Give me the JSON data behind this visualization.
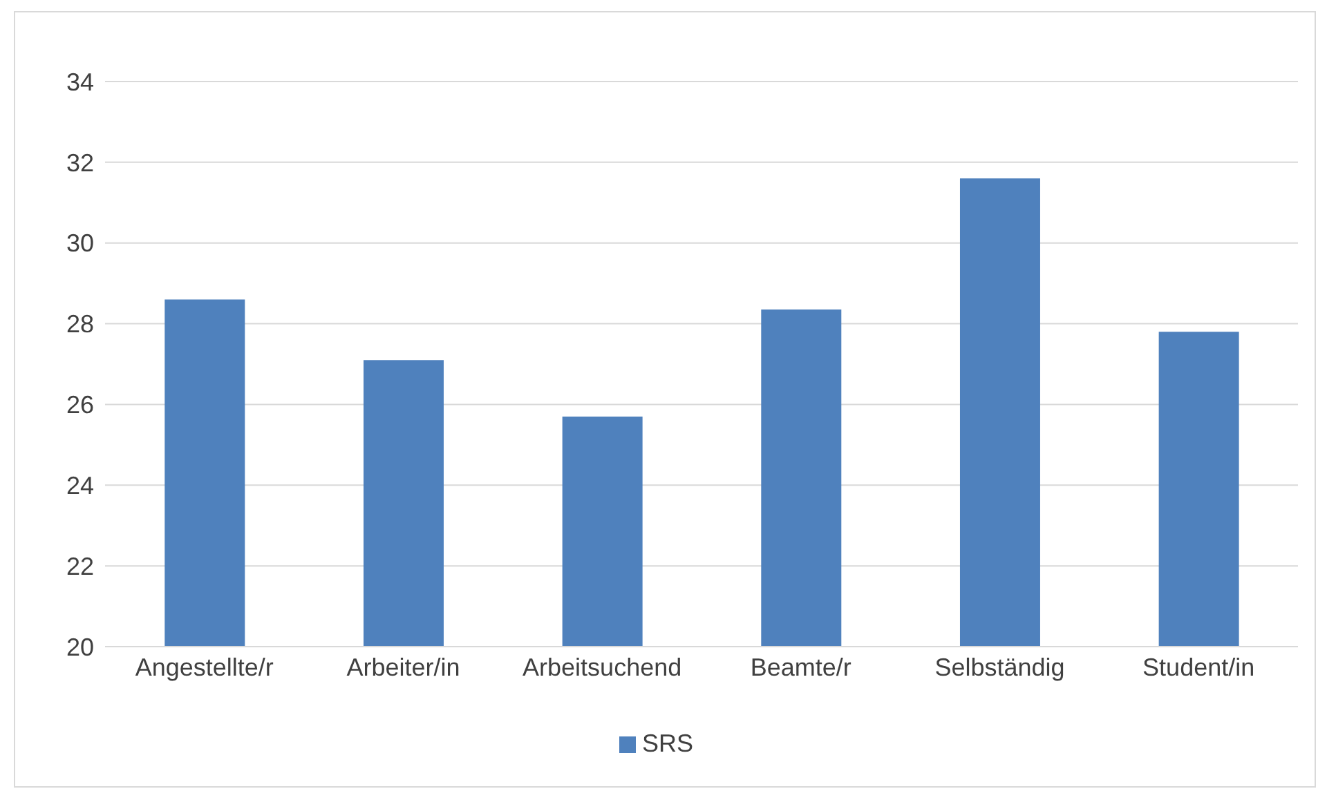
{
  "chart_data": {
    "type": "bar",
    "categories": [
      "Angestellte/r",
      "Arbeiter/in",
      "Arbeitsuchend",
      "Beamte/r",
      "Selbständig",
      "Student/in"
    ],
    "series": [
      {
        "name": "SRS",
        "color": "#4f81bd",
        "values": [
          28.6,
          27.1,
          25.7,
          28.35,
          31.6,
          27.8
        ]
      }
    ],
    "ylim": [
      20,
      34
    ],
    "yticks": [
      20,
      22,
      24,
      26,
      28,
      30,
      32,
      34
    ],
    "grid": "y",
    "legend": "bottom"
  }
}
